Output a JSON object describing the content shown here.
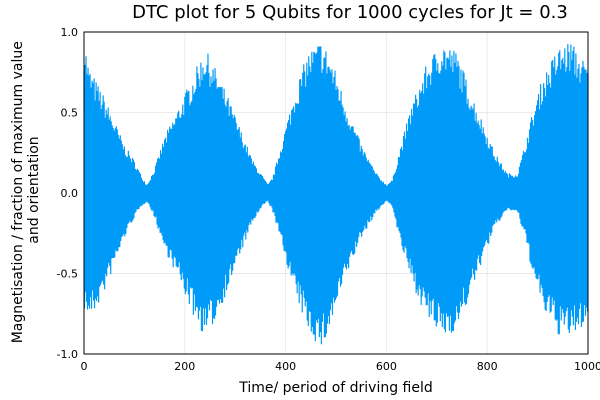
{
  "chart_data": {
    "type": "line",
    "title": "DTC plot for 5 Qubits for 1000 cycles for Jt = 0.3",
    "xlabel": "Time/ period of driving field",
    "ylabel_lines": [
      "Magnetisation / fraction of maximum value",
      "and orientation"
    ],
    "xlim": [
      0,
      1000
    ],
    "ylim": [
      -1.0,
      1.0
    ],
    "xticks": [
      "0",
      "200",
      "400",
      "600",
      "800",
      "1000"
    ],
    "yticks": [
      "-1.0",
      "-0.5",
      "0.0",
      "0.5",
      "1.0"
    ],
    "grid": true,
    "series_color": "#009AF9",
    "envelope": {
      "x": [
        0,
        10,
        20,
        40,
        60,
        80,
        100,
        115,
        125,
        140,
        160,
        190,
        215,
        240,
        260,
        285,
        310,
        335,
        355,
        365,
        375,
        395,
        420,
        445,
        470,
        485,
        500,
        520,
        550,
        580,
        600,
        612,
        625,
        650,
        680,
        710,
        740,
        765,
        790,
        815,
        840,
        860,
        875,
        890,
        910,
        940,
        965,
        985,
        1000
      ],
      "upper": [
        0.98,
        0.78,
        0.72,
        0.6,
        0.45,
        0.3,
        0.2,
        0.1,
        0.05,
        0.15,
        0.35,
        0.55,
        0.72,
        0.9,
        0.78,
        0.6,
        0.4,
        0.2,
        0.1,
        0.05,
        0.1,
        0.35,
        0.65,
        0.88,
        0.95,
        0.88,
        0.75,
        0.55,
        0.3,
        0.12,
        0.05,
        0.08,
        0.25,
        0.55,
        0.8,
        0.95,
        0.88,
        0.65,
        0.45,
        0.25,
        0.12,
        0.12,
        0.3,
        0.5,
        0.72,
        0.9,
        0.95,
        0.85,
        0.8
      ],
      "lower": [
        -0.72,
        -0.78,
        -0.75,
        -0.62,
        -0.45,
        -0.28,
        -0.15,
        -0.08,
        -0.05,
        -0.15,
        -0.35,
        -0.55,
        -0.75,
        -0.9,
        -0.8,
        -0.6,
        -0.38,
        -0.18,
        -0.08,
        -0.05,
        -0.12,
        -0.35,
        -0.65,
        -0.85,
        -0.98,
        -0.88,
        -0.72,
        -0.52,
        -0.28,
        -0.12,
        -0.05,
        -0.08,
        -0.28,
        -0.55,
        -0.78,
        -0.9,
        -0.85,
        -0.65,
        -0.42,
        -0.22,
        -0.1,
        -0.12,
        -0.28,
        -0.5,
        -0.72,
        -0.88,
        -0.9,
        -0.85,
        -0.78
      ]
    }
  }
}
